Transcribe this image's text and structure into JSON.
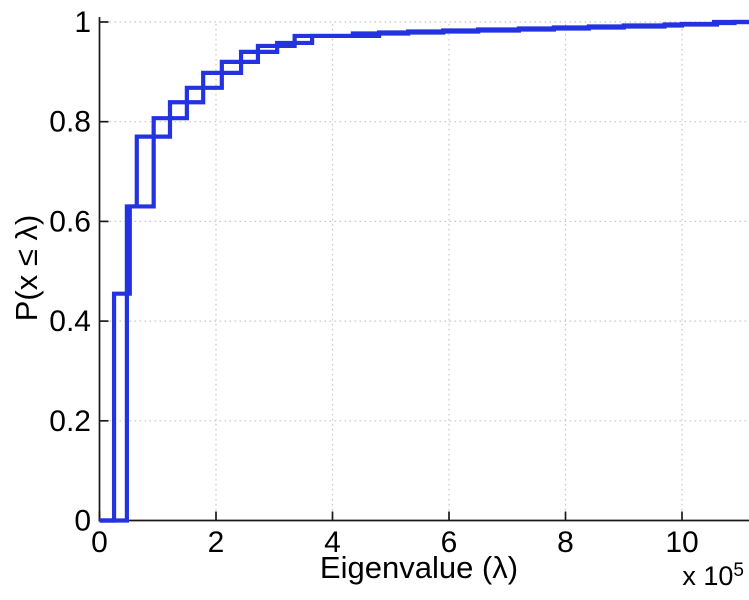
{
  "chart_data": {
    "type": "line",
    "subtype": "empirical-cdf-steps",
    "title": "",
    "xlabel": "Eigenvalue (λ)",
    "ylabel": "P(x ≤ λ)",
    "x_multiplier": {
      "base": "x 10",
      "exp": "5"
    },
    "xlim": [
      0,
      11.15
    ],
    "ylim": [
      0,
      1
    ],
    "x_ticks": [
      0,
      2,
      4,
      6,
      8,
      10
    ],
    "x_tick_labels": [
      "0",
      "2",
      "4",
      "6",
      "8",
      "10"
    ],
    "y_ticks": [
      0,
      0.2,
      0.4,
      0.6,
      0.8,
      1
    ],
    "y_tick_labels": [
      "0",
      "0.2",
      "0.4",
      "0.6",
      "0.8",
      "1"
    ],
    "grid": true,
    "legend": "none",
    "colors": {
      "line": "#2333E0",
      "axis": "#1a1a1a",
      "grid_dots": "#c8c8c8",
      "text": "#000000",
      "background": "#ffffff"
    },
    "series": [
      {
        "name": "ecdf-curve-1",
        "color": "#2333E0",
        "start": [
          0,
          0
        ],
        "steps": [
          [
            0.25,
            0.455
          ],
          [
            0.52,
            0.63
          ],
          [
            0.93,
            0.807
          ],
          [
            1.5,
            0.868
          ],
          [
            2.1,
            0.92
          ],
          [
            2.72,
            0.952
          ],
          [
            3.35,
            0.972
          ],
          [
            4.35,
            0.977
          ],
          [
            5.3,
            0.981
          ],
          [
            6.5,
            0.985
          ],
          [
            7.8,
            0.989
          ],
          [
            9.0,
            0.993
          ],
          [
            10.0,
            0.996
          ],
          [
            10.55,
            1.0
          ]
        ]
      },
      {
        "name": "ecdf-curve-2",
        "color": "#2333E0",
        "start": [
          0,
          0
        ],
        "steps": [
          [
            0.47,
            0.63
          ],
          [
            0.64,
            0.77
          ],
          [
            1.21,
            0.839
          ],
          [
            1.78,
            0.898
          ],
          [
            2.43,
            0.94
          ],
          [
            3.05,
            0.958
          ],
          [
            3.65,
            0.972
          ],
          [
            4.8,
            0.979
          ],
          [
            5.9,
            0.983
          ],
          [
            7.2,
            0.987
          ],
          [
            8.4,
            0.991
          ],
          [
            9.7,
            0.995
          ],
          [
            10.6,
            0.998
          ],
          [
            10.9,
            1.0
          ]
        ]
      }
    ]
  }
}
